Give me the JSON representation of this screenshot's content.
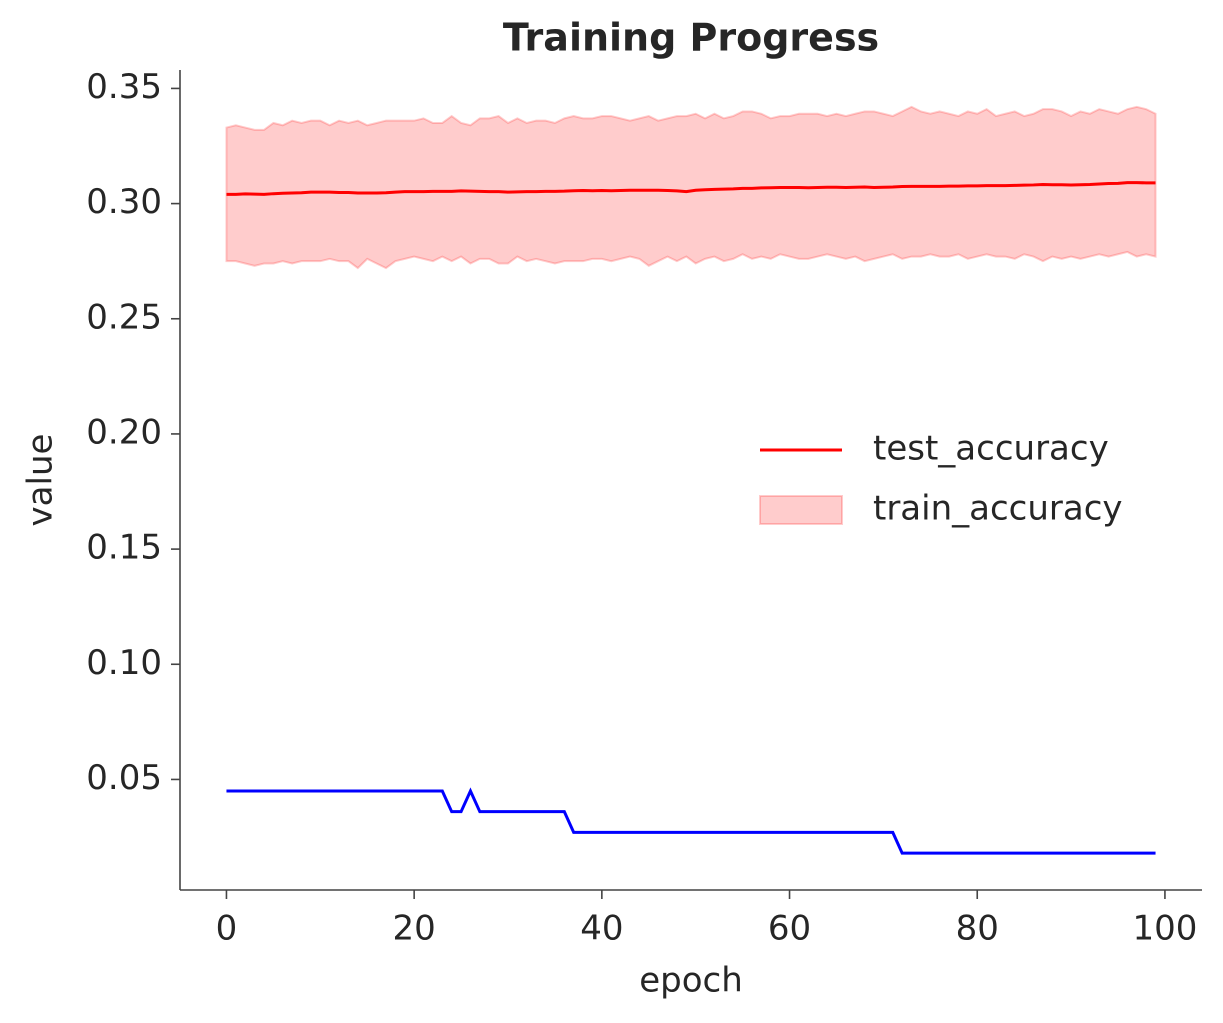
{
  "chart_data": {
    "type": "line",
    "title": "Training Progress",
    "x_label": "epoch",
    "y_label": "value",
    "x": [
      0,
      1,
      2,
      3,
      4,
      5,
      6,
      7,
      8,
      9,
      10,
      11,
      12,
      13,
      14,
      15,
      16,
      17,
      18,
      19,
      20,
      21,
      22,
      23,
      24,
      25,
      26,
      27,
      28,
      29,
      30,
      31,
      32,
      33,
      34,
      35,
      36,
      37,
      38,
      39,
      40,
      41,
      42,
      43,
      44,
      45,
      46,
      47,
      48,
      49,
      50,
      51,
      52,
      53,
      54,
      55,
      56,
      57,
      58,
      59,
      60,
      61,
      62,
      63,
      64,
      65,
      66,
      67,
      68,
      69,
      70,
      71,
      72,
      73,
      74,
      75,
      76,
      77,
      78,
      79,
      80,
      81,
      82,
      83,
      84,
      85,
      86,
      87,
      88,
      89,
      90,
      91,
      92,
      93,
      94,
      95,
      96,
      97,
      98,
      99
    ],
    "series": [
      {
        "name": "test_accuracy",
        "color": "#ff0000",
        "values": [
          0.304,
          0.304,
          0.3042,
          0.3041,
          0.304,
          0.3043,
          0.3045,
          0.3046,
          0.3047,
          0.305,
          0.305,
          0.305,
          0.3048,
          0.3048,
          0.3046,
          0.3046,
          0.3046,
          0.3047,
          0.305,
          0.3052,
          0.3052,
          0.3052,
          0.3053,
          0.3053,
          0.3053,
          0.3055,
          0.3054,
          0.3053,
          0.3052,
          0.3052,
          0.305,
          0.3051,
          0.3052,
          0.3052,
          0.3053,
          0.3053,
          0.3054,
          0.3056,
          0.3057,
          0.3056,
          0.3057,
          0.3056,
          0.3057,
          0.3058,
          0.3058,
          0.3058,
          0.3058,
          0.3057,
          0.3055,
          0.3052,
          0.3058,
          0.306,
          0.3062,
          0.3063,
          0.3064,
          0.3066,
          0.3066,
          0.3068,
          0.3069,
          0.307,
          0.307,
          0.307,
          0.3069,
          0.307,
          0.3071,
          0.3071,
          0.307,
          0.3071,
          0.3072,
          0.307,
          0.3071,
          0.3072,
          0.3074,
          0.3075,
          0.3075,
          0.3075,
          0.3075,
          0.3076,
          0.3076,
          0.3077,
          0.3077,
          0.3078,
          0.3078,
          0.3078,
          0.3079,
          0.308,
          0.3081,
          0.3083,
          0.3082,
          0.3082,
          0.3081,
          0.3082,
          0.3083,
          0.3085,
          0.3087,
          0.3088,
          0.3091,
          0.3091,
          0.309,
          0.309
        ]
      },
      {
        "name": "train_accuracy",
        "color": "#ff0000",
        "band": true,
        "upper": [
          0.333,
          0.334,
          0.333,
          0.332,
          0.332,
          0.335,
          0.334,
          0.336,
          0.335,
          0.336,
          0.336,
          0.334,
          0.336,
          0.335,
          0.336,
          0.334,
          0.335,
          0.336,
          0.336,
          0.336,
          0.336,
          0.337,
          0.335,
          0.335,
          0.338,
          0.335,
          0.334,
          0.337,
          0.337,
          0.338,
          0.335,
          0.337,
          0.335,
          0.336,
          0.336,
          0.335,
          0.337,
          0.338,
          0.337,
          0.337,
          0.338,
          0.338,
          0.337,
          0.336,
          0.337,
          0.338,
          0.336,
          0.337,
          0.338,
          0.338,
          0.339,
          0.337,
          0.339,
          0.337,
          0.338,
          0.34,
          0.34,
          0.339,
          0.337,
          0.338,
          0.338,
          0.339,
          0.339,
          0.339,
          0.338,
          0.339,
          0.338,
          0.339,
          0.34,
          0.34,
          0.339,
          0.338,
          0.34,
          0.342,
          0.34,
          0.339,
          0.34,
          0.339,
          0.338,
          0.34,
          0.339,
          0.341,
          0.338,
          0.339,
          0.34,
          0.338,
          0.339,
          0.341,
          0.341,
          0.34,
          0.338,
          0.34,
          0.339,
          0.341,
          0.34,
          0.339,
          0.341,
          0.342,
          0.341,
          0.339
        ],
        "lower": [
          0.275,
          0.275,
          0.274,
          0.273,
          0.274,
          0.274,
          0.275,
          0.274,
          0.275,
          0.275,
          0.275,
          0.276,
          0.275,
          0.275,
          0.272,
          0.276,
          0.274,
          0.272,
          0.275,
          0.276,
          0.277,
          0.276,
          0.275,
          0.277,
          0.275,
          0.277,
          0.274,
          0.276,
          0.276,
          0.274,
          0.274,
          0.277,
          0.275,
          0.276,
          0.275,
          0.274,
          0.275,
          0.275,
          0.275,
          0.276,
          0.276,
          0.275,
          0.276,
          0.277,
          0.276,
          0.273,
          0.275,
          0.277,
          0.275,
          0.277,
          0.274,
          0.276,
          0.277,
          0.275,
          0.276,
          0.278,
          0.276,
          0.277,
          0.276,
          0.278,
          0.277,
          0.276,
          0.276,
          0.277,
          0.278,
          0.277,
          0.276,
          0.277,
          0.275,
          0.276,
          0.277,
          0.278,
          0.276,
          0.277,
          0.277,
          0.278,
          0.277,
          0.277,
          0.278,
          0.276,
          0.277,
          0.278,
          0.277,
          0.277,
          0.276,
          0.278,
          0.277,
          0.275,
          0.277,
          0.276,
          0.277,
          0.276,
          0.277,
          0.278,
          0.277,
          0.278,
          0.279,
          0.277,
          0.278,
          0.277
        ]
      },
      {
        "color": "#0000ff",
        "values": [
          0.045,
          0.045,
          0.045,
          0.045,
          0.045,
          0.045,
          0.045,
          0.045,
          0.045,
          0.045,
          0.045,
          0.045,
          0.045,
          0.045,
          0.045,
          0.045,
          0.045,
          0.045,
          0.045,
          0.045,
          0.045,
          0.045,
          0.045,
          0.045,
          0.036,
          0.036,
          0.045,
          0.036,
          0.036,
          0.036,
          0.036,
          0.036,
          0.036,
          0.036,
          0.036,
          0.036,
          0.036,
          0.027,
          0.027,
          0.027,
          0.027,
          0.027,
          0.027,
          0.027,
          0.027,
          0.027,
          0.027,
          0.027,
          0.027,
          0.027,
          0.027,
          0.027,
          0.027,
          0.027,
          0.027,
          0.027,
          0.027,
          0.027,
          0.027,
          0.027,
          0.027,
          0.027,
          0.027,
          0.027,
          0.027,
          0.027,
          0.027,
          0.027,
          0.027,
          0.027,
          0.027,
          0.027,
          0.018,
          0.018,
          0.018,
          0.018,
          0.018,
          0.018,
          0.018,
          0.018,
          0.018,
          0.018,
          0.018,
          0.018,
          0.018,
          0.018,
          0.018,
          0.018,
          0.018,
          0.018,
          0.018,
          0.018,
          0.018,
          0.018,
          0.018,
          0.018,
          0.018,
          0.018,
          0.018,
          0.018
        ]
      }
    ],
    "xlim": [
      -4.95,
      103.95
    ],
    "ylim": [
      0.002,
      0.358
    ],
    "xticks": [
      0,
      20,
      40,
      60,
      80,
      100
    ],
    "yticks": [
      0.05,
      {
        "value": 0.1,
        "label": "0.10"
      },
      0.15,
      {
        "value": 0.2,
        "label": "0.20"
      },
      0.25,
      {
        "value": 0.3,
        "label": "0.30"
      },
      0.35
    ],
    "grid": false,
    "legend": "center right"
  }
}
